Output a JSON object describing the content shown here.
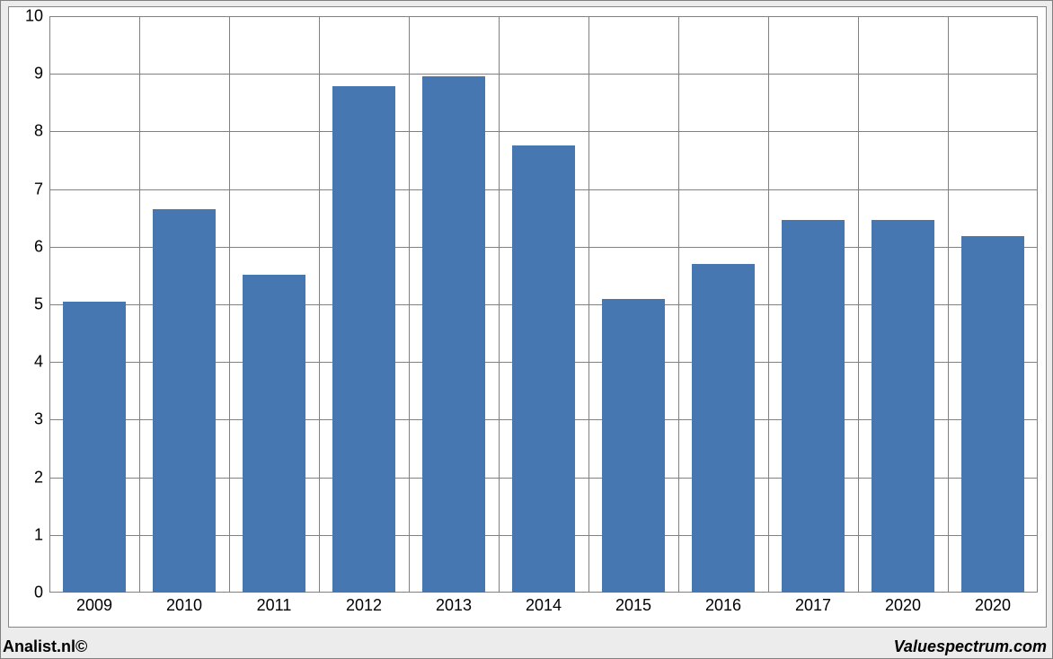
{
  "chart": {
    "type": "bar",
    "categories": [
      "2009",
      "2010",
      "2011",
      "2012",
      "2013",
      "2014",
      "2015",
      "2016",
      "2017",
      "2020",
      "2020"
    ],
    "values": [
      5.05,
      6.65,
      5.52,
      8.78,
      8.95,
      7.75,
      5.1,
      5.7,
      6.47,
      6.47,
      6.18
    ],
    "bar_color": "#4677b0",
    "bar_width_ratio": 0.7,
    "ylim": [
      0,
      10
    ],
    "ytick_step": 1,
    "y_ticks": [
      "0",
      "1",
      "2",
      "3",
      "4",
      "5",
      "6",
      "7",
      "8",
      "9",
      "10"
    ],
    "background_color": "#ffffff",
    "outer_background": "#ececec",
    "grid_color": "#808080",
    "border_color": "#868686",
    "label_fontsize": 18,
    "text_color": "#000000",
    "footer_left": "Analist.nl©",
    "footer_right": "Valuespectrum.com"
  }
}
